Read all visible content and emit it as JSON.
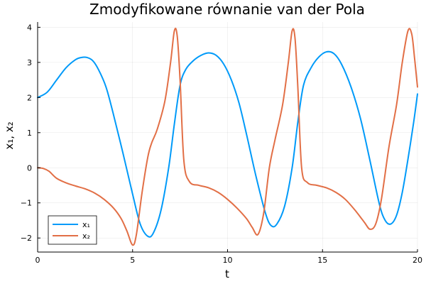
{
  "chart_data": {
    "type": "line",
    "title": "Zmodyfikowane równanie van der Pola",
    "xlabel": "t",
    "ylabel": "x₁, x₂",
    "xlim": [
      0,
      20
    ],
    "ylim": [
      -2.4,
      4.15
    ],
    "xticks": [
      0,
      5,
      10,
      15,
      20
    ],
    "xtick_labels": [
      "0",
      "5",
      "10",
      "15",
      "20"
    ],
    "yticks": [
      -2,
      -1,
      0,
      1,
      2,
      3,
      4
    ],
    "ytick_labels": [
      "−2",
      "−1",
      "0",
      "1",
      "2",
      "3",
      "4"
    ],
    "grid": true,
    "legend_position": "bottom-left",
    "series": [
      {
        "name": "x₁",
        "color": "#009AF9",
        "x": [
          0,
          0.5,
          1.0,
          1.5,
          2.0,
          2.3,
          2.6,
          2.9,
          3.2,
          3.6,
          4.0,
          4.5,
          5.0,
          5.4,
          5.8,
          6.1,
          6.5,
          6.9,
          7.2,
          7.5,
          7.8,
          8.2,
          8.6,
          9.0,
          9.4,
          9.8,
          10.2,
          10.6,
          11.0,
          11.5,
          12.0,
          12.3,
          12.6,
          13.0,
          13.4,
          13.7,
          14.0,
          14.4,
          14.8,
          15.2,
          15.6,
          16.0,
          16.5,
          17.0,
          17.5,
          18.0,
          18.3,
          18.6,
          18.9,
          19.2,
          19.5,
          19.8,
          20.0
        ],
        "y": [
          2.0,
          2.15,
          2.5,
          2.85,
          3.08,
          3.14,
          3.14,
          3.05,
          2.8,
          2.3,
          1.5,
          0.4,
          -0.75,
          -1.6,
          -1.95,
          -1.85,
          -1.2,
          0.0,
          1.25,
          2.35,
          2.8,
          3.05,
          3.2,
          3.27,
          3.2,
          2.95,
          2.5,
          1.85,
          0.95,
          -0.25,
          -1.3,
          -1.65,
          -1.6,
          -1.1,
          0.0,
          1.3,
          2.35,
          2.85,
          3.15,
          3.3,
          3.25,
          2.95,
          2.3,
          1.4,
          0.2,
          -1.05,
          -1.5,
          -1.6,
          -1.35,
          -0.7,
          0.25,
          1.3,
          2.1
        ]
      },
      {
        "name": "x₂",
        "color": "#E26F46",
        "x": [
          0,
          0.3,
          0.6,
          1.0,
          1.5,
          2.0,
          2.5,
          3.0,
          3.5,
          4.0,
          4.4,
          4.7,
          5.0,
          5.2,
          5.5,
          5.8,
          6.0,
          6.3,
          6.7,
          7.0,
          7.2,
          7.35,
          7.5,
          7.7,
          8.0,
          8.5,
          9.0,
          9.5,
          10.0,
          10.5,
          11.0,
          11.3,
          11.6,
          11.9,
          12.2,
          12.5,
          12.9,
          13.2,
          13.4,
          13.55,
          13.7,
          13.9,
          14.2,
          14.7,
          15.2,
          15.7,
          16.2,
          16.7,
          17.2,
          17.5,
          17.8,
          18.1,
          18.5,
          18.9,
          19.2,
          19.5,
          19.7,
          19.85,
          20.0
        ],
        "y": [
          0,
          -0.02,
          -0.1,
          -0.3,
          -0.43,
          -0.52,
          -0.6,
          -0.72,
          -0.9,
          -1.15,
          -1.45,
          -1.8,
          -2.2,
          -1.9,
          -0.7,
          0.3,
          0.7,
          1.1,
          1.9,
          3.0,
          3.9,
          3.75,
          2.5,
          0.2,
          -0.4,
          -0.5,
          -0.57,
          -0.7,
          -0.9,
          -1.15,
          -1.45,
          -1.7,
          -1.9,
          -1.3,
          0.0,
          0.8,
          1.8,
          3.0,
          3.9,
          3.7,
          2.3,
          0.0,
          -0.42,
          -0.5,
          -0.57,
          -0.7,
          -0.9,
          -1.2,
          -1.55,
          -1.75,
          -1.6,
          -0.9,
          0.6,
          1.8,
          3.0,
          3.9,
          3.8,
          3.1,
          2.3
        ]
      }
    ]
  }
}
